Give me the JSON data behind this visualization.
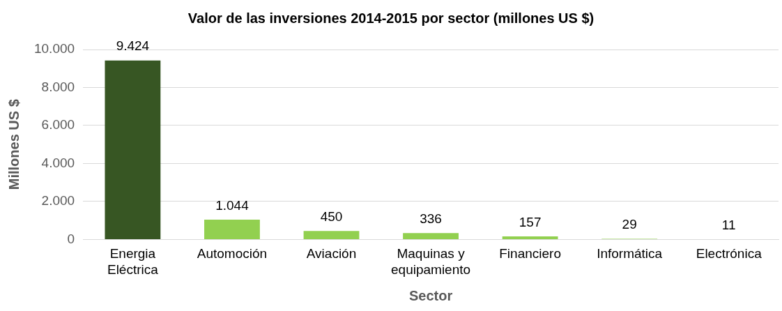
{
  "chart_data": {
    "type": "bar",
    "title": "Valor de las inversiones 2014-2015 por sector (millones US $)",
    "xlabel": "Sector",
    "ylabel": "Millones US $",
    "categories": [
      "Energia\nEléctrica",
      "Automoción",
      "Aviación",
      "Maquinas y\nequipamiento",
      "Financiero",
      "Informática",
      "Electrónica"
    ],
    "values": [
      9424,
      1044,
      450,
      336,
      157,
      29,
      11
    ],
    "colors": [
      "#375623",
      "#92d050",
      "#92d050",
      "#92d050",
      "#92d050",
      "#92d050",
      "#92d050"
    ],
    "value_labels": [
      "9.424",
      "1.044",
      "450",
      "336",
      "157",
      "29",
      "11"
    ],
    "ylim": [
      0,
      10000
    ],
    "yticks": [
      {
        "value": 0,
        "label": "0"
      },
      {
        "value": 2000,
        "label": "2.000"
      },
      {
        "value": 4000,
        "label": "4.000"
      },
      {
        "value": 6000,
        "label": "6.000"
      },
      {
        "value": 8000,
        "label": "8.000"
      },
      {
        "value": 10000,
        "label": "10.000"
      }
    ],
    "grid": "y",
    "legend": false
  }
}
